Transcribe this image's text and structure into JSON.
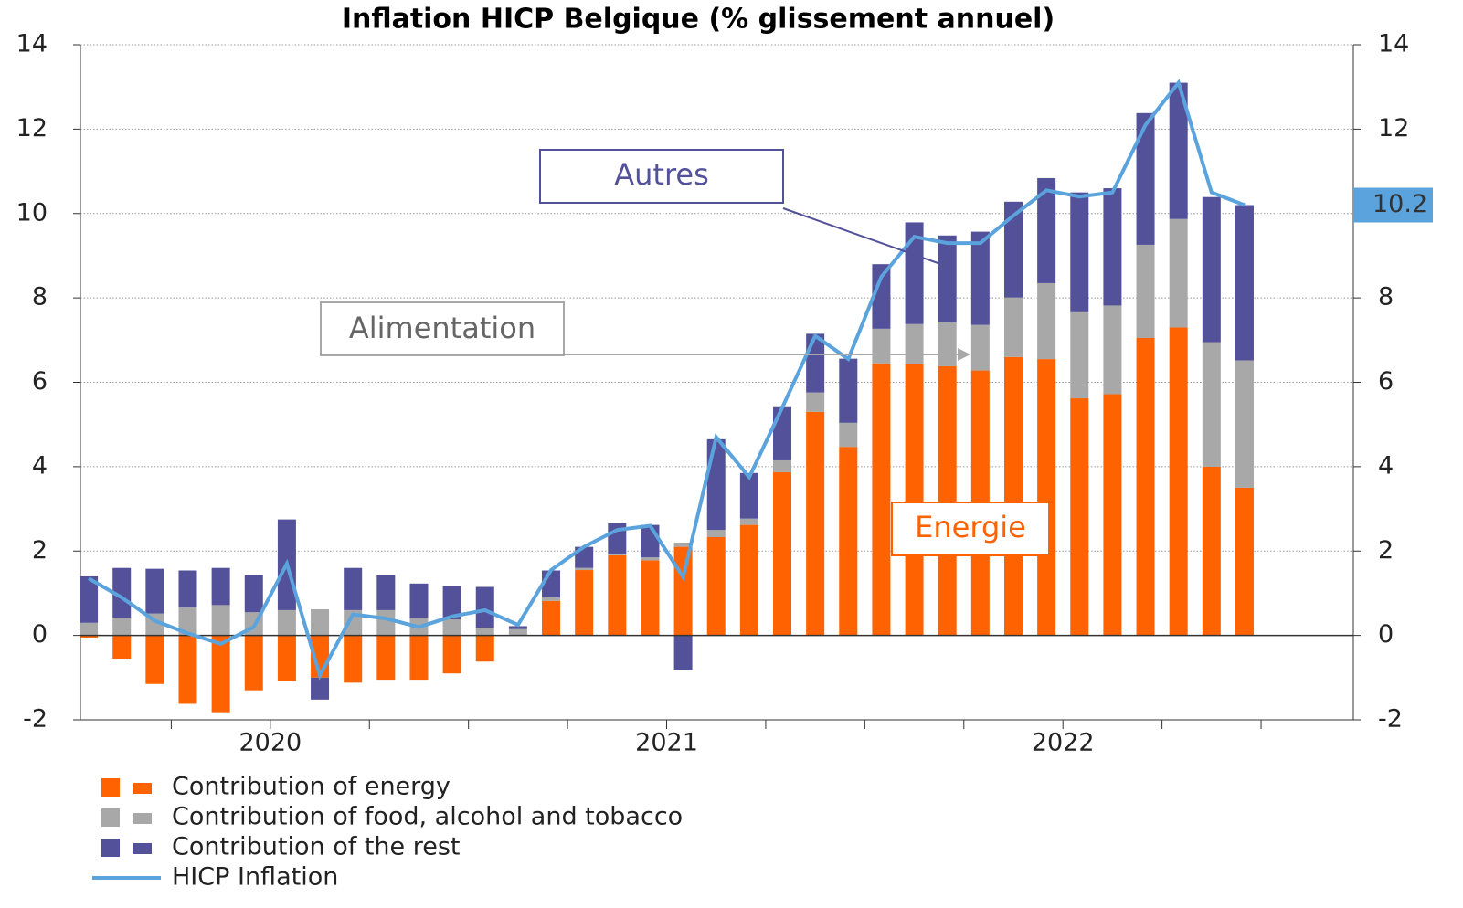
{
  "chart_data": {
    "type": "stacked_bar_line",
    "title": "Inflation HICP Belgique (% glissement annuel)",
    "year_labels": [
      "2020",
      "2021",
      "2022"
    ],
    "series": [
      {
        "name": "Contribution of energy",
        "type": "bar",
        "color": "#ff6200",
        "values": [
          -0.05,
          -0.55,
          -1.15,
          -1.62,
          -1.82,
          -1.3,
          -1.08,
          -1.0,
          -1.12,
          -1.05,
          -1.05,
          -0.9,
          -0.62,
          0,
          0.82,
          1.55,
          1.9,
          1.78,
          2.1,
          2.33,
          2.62,
          3.87,
          5.3,
          4.47,
          6.45,
          6.43,
          6.38,
          6.28,
          6.6,
          6.55,
          5.62,
          5.72,
          7.05,
          7.3,
          4.0,
          3.5
        ]
      },
      {
        "name": "Contribution of food, alcohol and tobacco",
        "type": "bar",
        "color": "#a8a8a8",
        "values": [
          0.3,
          0.42,
          0.52,
          0.67,
          0.72,
          0.55,
          0.6,
          0.62,
          0.6,
          0.6,
          0.42,
          0.38,
          0.18,
          0.15,
          0.08,
          0.05,
          0.02,
          0.07,
          0.1,
          0.17,
          0.15,
          0.28,
          0.46,
          0.57,
          0.82,
          0.95,
          1.04,
          1.08,
          1.41,
          1.8,
          2.04,
          2.1,
          2.21,
          2.57,
          2.95,
          3.02
        ]
      },
      {
        "name": "Contribution of the rest",
        "type": "bar",
        "color": "#525199",
        "values": [
          1.1,
          1.18,
          1.06,
          0.87,
          0.88,
          0.88,
          2.15,
          -0.52,
          1.0,
          0.83,
          0.81,
          0.79,
          0.97,
          0.07,
          0.64,
          0.5,
          0.74,
          0.77,
          -0.83,
          2.15,
          1.08,
          1.26,
          1.39,
          1.52,
          1.53,
          2.41,
          2.06,
          2.21,
          2.27,
          2.49,
          2.84,
          2.78,
          3.12,
          3.23,
          3.44,
          3.68
        ]
      },
      {
        "name": "HICP Inflation",
        "type": "line",
        "color": "#5ba3dc",
        "axis": "y2",
        "end_label": "10.2",
        "values": [
          1.35,
          0.9,
          0.35,
          0.05,
          -0.2,
          0.2,
          1.7,
          -0.95,
          0.5,
          0.4,
          0.2,
          0.45,
          0.6,
          0.25,
          1.55,
          2.1,
          2.5,
          2.6,
          1.38,
          4.7,
          3.75,
          5.4,
          7.1,
          6.55,
          8.5,
          9.45,
          9.3,
          9.3,
          9.95,
          10.55,
          10.4,
          10.5,
          12.1,
          13.1,
          10.5,
          10.2
        ]
      }
    ],
    "annotations": [
      "Autres",
      "Alimentation",
      "Energie"
    ],
    "ylim": [
      -2,
      14
    ],
    "yticks": [
      -2,
      0,
      2,
      4,
      6,
      8,
      10,
      12,
      14
    ],
    "y2lim": [
      -2,
      14
    ],
    "y2ticks": [
      -2,
      0,
      2,
      4,
      6,
      8,
      10,
      12,
      14
    ],
    "grid": true
  }
}
